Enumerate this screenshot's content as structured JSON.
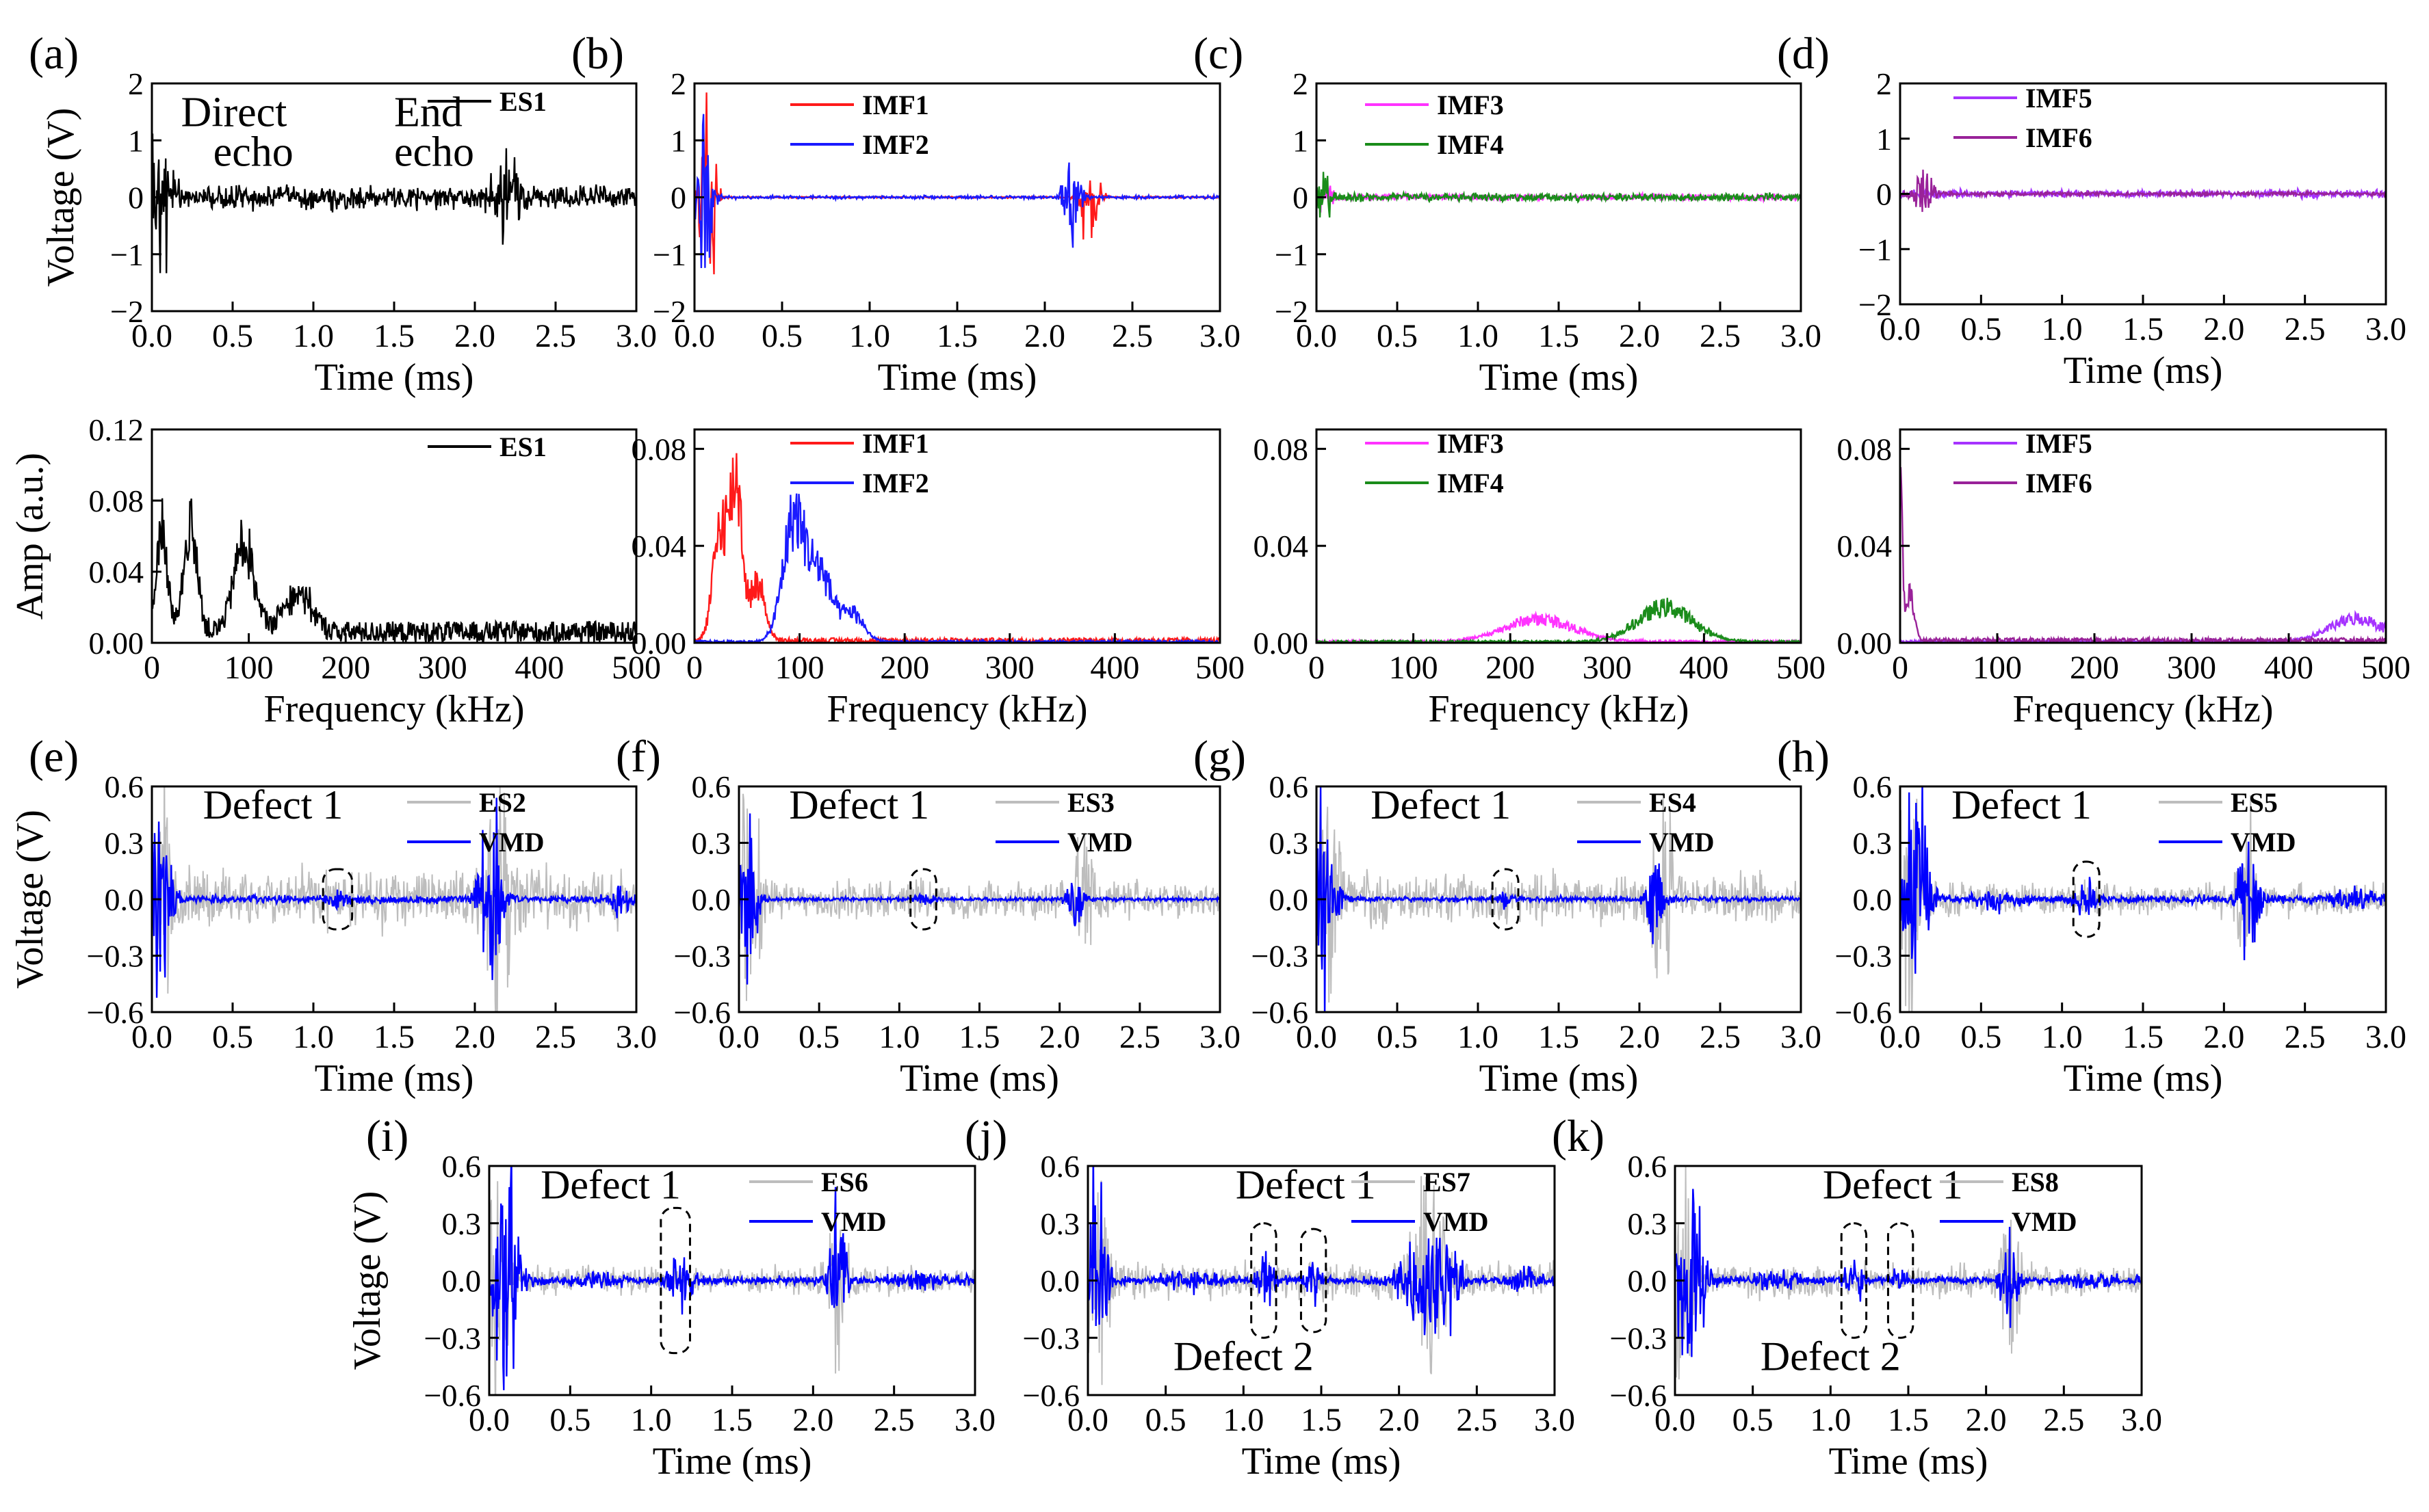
{
  "colors": {
    "ES": "#000000",
    "IMF1": "#ff1a1a",
    "IMF2": "#1a1aff",
    "IMF3": "#ff33ff",
    "IMF4": "#1a8c1a",
    "IMF5": "#a633ff",
    "IMF6": "#992299",
    "ESgray": "#bdbdbd",
    "VMD": "#0000ff"
  },
  "chart_data": [
    {
      "panel": "(a)",
      "type": "line",
      "xlabel": "Time (ms)",
      "ylabel": "Voltage (V)",
      "xlim": [
        0,
        3.0
      ],
      "ylim": [
        -2,
        2
      ],
      "xticks": [
        "0.0",
        "0.5",
        "1.0",
        "1.5",
        "2.0",
        "2.5",
        "3.0"
      ],
      "yticks": [
        "-2",
        "-1",
        "0",
        "1",
        "2"
      ],
      "series": [
        {
          "name": "ES1",
          "color": "#000000",
          "bursts": [
            [
              0.05,
              2.6,
              0.07
            ],
            [
              2.2,
              1.0,
              0.08
            ]
          ],
          "noise": 0.28
        }
      ],
      "annotations": [
        {
          "text": "Direct",
          "x": 0.18,
          "y": 1.25
        },
        {
          "text": "echo",
          "x": 0.38,
          "y": 0.55
        },
        {
          "text": "End",
          "x": 1.5,
          "y": 1.25
        },
        {
          "text": "echo",
          "x": 1.5,
          "y": 0.55
        }
      ]
    },
    {
      "panel": "(b)",
      "type": "line",
      "xlabel": "Time (ms)",
      "ylabel": "",
      "xlim": [
        0,
        3.0
      ],
      "ylim": [
        -2,
        2
      ],
      "xticks": [
        "0.0",
        "0.5",
        "1.0",
        "1.5",
        "2.0",
        "2.5",
        "3.0"
      ],
      "yticks": [
        "-2",
        "-1",
        "0",
        "1",
        "2"
      ],
      "series": [
        {
          "name": "IMF1",
          "color": "#ff1a1a",
          "bursts": [
            [
              0.08,
              2.3,
              0.05
            ],
            [
              2.25,
              1.1,
              0.06
            ]
          ],
          "noise": 0.02
        },
        {
          "name": "IMF2",
          "color": "#1a1aff",
          "bursts": [
            [
              0.05,
              2.5,
              0.05
            ],
            [
              2.15,
              1.1,
              0.05
            ]
          ],
          "noise": 0.04
        }
      ]
    },
    {
      "panel": "(c)",
      "type": "line",
      "xlabel": "Time (ms)",
      "ylabel": "",
      "xlim": [
        0,
        3.0
      ],
      "ylim": [
        -2,
        2
      ],
      "xticks": [
        "0.0",
        "0.5",
        "1.0",
        "1.5",
        "2.0",
        "2.5",
        "3.0"
      ],
      "yticks": [
        "-2",
        "-1",
        "0",
        "1",
        "2"
      ],
      "series": [
        {
          "name": "IMF3",
          "color": "#ff33ff",
          "bursts": [
            [
              0.05,
              0.45,
              0.05
            ]
          ],
          "noise": 0.08
        },
        {
          "name": "IMF4",
          "color": "#1a8c1a",
          "bursts": [
            [
              0.05,
              0.6,
              0.05
            ]
          ],
          "noise": 0.1
        }
      ]
    },
    {
      "panel": "(d)",
      "type": "line",
      "xlabel": "Time (ms)",
      "ylabel": "",
      "xlim": [
        0,
        3.0
      ],
      "ylim": [
        -2,
        2
      ],
      "xticks": [
        "0.0",
        "0.5",
        "1.0",
        "1.5",
        "2.0",
        "2.5",
        "3.0"
      ],
      "yticks": [
        "-2",
        "-1",
        "0",
        "1",
        "2"
      ],
      "series": [
        {
          "name": "IMF5",
          "color": "#a633ff",
          "bursts": [],
          "noise": 0.1
        },
        {
          "name": "IMF6",
          "color": "#992299",
          "bursts": [
            [
              0.15,
              0.8,
              0.06
            ]
          ],
          "noise": 0.05
        }
      ]
    },
    {
      "panel": "",
      "type": "line",
      "xlabel": "Frequency (kHz)",
      "ylabel": "Amp (a.u.)",
      "xlim": [
        0,
        500
      ],
      "ylim": [
        0,
        0.12
      ],
      "xticks": [
        "0",
        "100",
        "200",
        "300",
        "400",
        "500"
      ],
      "yticks": [
        "0.00",
        "0.04",
        "0.08",
        "0.12"
      ],
      "series": [
        {
          "name": "ES1",
          "color": "#000000",
          "peaks": [
            [
              10,
              0.075,
              8
            ],
            [
              40,
              0.075,
              10
            ],
            [
              95,
              0.065,
              15
            ],
            [
              150,
              0.03,
              20
            ]
          ],
          "floor": 0.012
        }
      ]
    },
    {
      "panel": "",
      "type": "line",
      "xlabel": "Frequency (kHz)",
      "ylabel": "",
      "xlim": [
        0,
        500
      ],
      "ylim": [
        0,
        0.088
      ],
      "xticks": [
        "0",
        "100",
        "200",
        "300",
        "400",
        "500"
      ],
      "yticks": [
        "0.00",
        "0.04",
        "0.08"
      ],
      "series": [
        {
          "name": "IMF1",
          "color": "#ff1a1a",
          "peaks": [
            [
              25,
              0.06,
              10
            ],
            [
              40,
              0.08,
              8
            ],
            [
              60,
              0.03,
              10
            ]
          ],
          "floor": 0.002
        },
        {
          "name": "IMF2",
          "color": "#1a1aff",
          "peaks": [
            [
              95,
              0.065,
              15
            ],
            [
              120,
              0.035,
              15
            ],
            [
              150,
              0.015,
              15
            ]
          ],
          "floor": 0.001
        }
      ]
    },
    {
      "panel": "",
      "type": "line",
      "xlabel": "Frequency (kHz)",
      "ylabel": "",
      "xlim": [
        0,
        500
      ],
      "ylim": [
        0,
        0.088
      ],
      "xticks": [
        "0",
        "100",
        "200",
        "300",
        "400",
        "500"
      ],
      "yticks": [
        "0.00",
        "0.04",
        "0.08"
      ],
      "series": [
        {
          "name": "IMF3",
          "color": "#ff33ff",
          "peaks": [
            [
              230,
              0.012,
              50
            ]
          ],
          "floor": 0.001
        },
        {
          "name": "IMF4",
          "color": "#1a8c1a",
          "peaks": [
            [
              360,
              0.018,
              40
            ]
          ],
          "floor": 0.001
        }
      ]
    },
    {
      "panel": "",
      "type": "line",
      "xlabel": "Frequency (kHz)",
      "ylabel": "",
      "xlim": [
        0,
        500
      ],
      "ylim": [
        0,
        0.088
      ],
      "xticks": [
        "0",
        "100",
        "200",
        "300",
        "400",
        "500"
      ],
      "yticks": [
        "0.00",
        "0.04",
        "0.08"
      ],
      "series": [
        {
          "name": "IMF5",
          "color": "#a633ff",
          "peaks": [
            [
              470,
              0.012,
              40
            ]
          ],
          "floor": 0.001
        },
        {
          "name": "IMF6",
          "color": "#992299",
          "peaks": [
            [
              0,
              0.09,
              3
            ],
            [
              10,
              0.025,
              6
            ]
          ],
          "floor": 0.002
        }
      ]
    },
    {
      "panel": "(e)",
      "type": "line",
      "xlabel": "Time (ms)",
      "ylabel": "Voltage (V)",
      "xlim": [
        0,
        3.0
      ],
      "ylim": [
        -0.6,
        0.6
      ],
      "xticks": [
        "0.0",
        "0.5",
        "1.0",
        "1.5",
        "2.0",
        "2.5",
        "3.0"
      ],
      "yticks": [
        "-0.6",
        "-0.3",
        "0.0",
        "0.3",
        "0.6"
      ],
      "series": [
        {
          "name": "ES2",
          "color": "#bdbdbd",
          "bursts": [
            [
              0.05,
              0.9,
              0.08
            ],
            [
              2.15,
              0.8,
              0.08
            ]
          ],
          "noise": 0.22
        },
        {
          "name": "VMD",
          "color": "#0000ff",
          "bursts": [
            [
              0.05,
              0.9,
              0.07
            ],
            [
              1.15,
              0.06,
              0.05
            ],
            [
              2.1,
              0.8,
              0.07
            ],
            [
              2.9,
              0.12,
              0.05
            ]
          ],
          "noise": 0.03
        }
      ],
      "defects": [
        {
          "label": "Defect 1",
          "x": 1.15,
          "halfw": 0.09,
          "halfh": 0.16
        }
      ]
    },
    {
      "panel": "(f)",
      "type": "line",
      "xlabel": "Time (ms)",
      "ylabel": "",
      "xlim": [
        0,
        3.0
      ],
      "ylim": [
        -0.6,
        0.6
      ],
      "xticks": [
        "0.0",
        "0.5",
        "1.0",
        "1.5",
        "2.0",
        "2.5",
        "3.0"
      ],
      "yticks": [
        "-0.6",
        "-0.3",
        "0.0",
        "0.3",
        "0.6"
      ],
      "series": [
        {
          "name": "ES3",
          "color": "#bdbdbd",
          "bursts": [
            [
              0.05,
              0.9,
              0.08
            ],
            [
              2.15,
              0.5,
              0.06
            ]
          ],
          "noise": 0.14
        },
        {
          "name": "VMD",
          "color": "#0000ff",
          "bursts": [
            [
              0.05,
              0.85,
              0.06
            ],
            [
              1.15,
              0.04,
              0.05
            ],
            [
              2.1,
              0.3,
              0.05
            ]
          ],
          "noise": 0.015
        }
      ],
      "defects": [
        {
          "label": "Defect 1",
          "x": 1.15,
          "halfw": 0.08,
          "halfh": 0.16
        }
      ]
    },
    {
      "panel": "(g)",
      "type": "line",
      "xlabel": "Time (ms)",
      "ylabel": "",
      "xlim": [
        0,
        3.0
      ],
      "ylim": [
        -0.6,
        0.6
      ],
      "xticks": [
        "0.0",
        "0.5",
        "1.0",
        "1.5",
        "2.0",
        "2.5",
        "3.0"
      ],
      "yticks": [
        "-0.6",
        "-0.3",
        "0.0",
        "0.3",
        "0.6"
      ],
      "series": [
        {
          "name": "ES4",
          "color": "#bdbdbd",
          "bursts": [
            [
              0.05,
              0.9,
              0.08
            ],
            [
              2.15,
              0.8,
              0.06
            ]
          ],
          "noise": 0.18
        },
        {
          "name": "VMD",
          "color": "#0000ff",
          "bursts": [
            [
              0.05,
              0.85,
              0.07
            ],
            [
              1.17,
              0.07,
              0.05
            ],
            [
              2.1,
              0.45,
              0.05
            ]
          ],
          "noise": 0.02
        }
      ],
      "defects": [
        {
          "label": "Defect 1",
          "x": 1.17,
          "halfw": 0.08,
          "halfh": 0.16
        }
      ]
    },
    {
      "panel": "(h)",
      "type": "line",
      "xlabel": "Time (ms)",
      "ylabel": "",
      "xlim": [
        0,
        3.0
      ],
      "ylim": [
        -0.6,
        0.6
      ],
      "xticks": [
        "0.0",
        "0.5",
        "1.0",
        "1.5",
        "2.0",
        "2.5",
        "3.0"
      ],
      "yticks": [
        "-0.6",
        "-0.3",
        "0.0",
        "0.3",
        "0.6"
      ],
      "series": [
        {
          "name": "ES5",
          "color": "#bdbdbd",
          "bursts": [
            [
              0.05,
              0.9,
              0.08
            ],
            [
              2.15,
              0.6,
              0.06
            ]
          ],
          "noise": 0.12
        },
        {
          "name": "VMD",
          "color": "#0000ff",
          "bursts": [
            [
              0.1,
              0.9,
              0.08
            ],
            [
              0.6,
              0.06,
              0.12
            ],
            [
              1.15,
              0.18,
              0.06
            ],
            [
              2.15,
              0.6,
              0.06
            ],
            [
              2.8,
              0.08,
              0.15
            ]
          ],
          "noise": 0.03
        }
      ],
      "defects": [
        {
          "label": "Defect 1",
          "x": 1.15,
          "halfw": 0.08,
          "halfh": 0.2
        }
      ]
    },
    {
      "panel": "(i)",
      "type": "line",
      "xlabel": "Time (ms)",
      "ylabel": "Voltage (V)",
      "xlim": [
        0,
        3.0
      ],
      "ylim": [
        -0.6,
        0.6
      ],
      "xticks": [
        "0.0",
        "0.5",
        "1.0",
        "1.5",
        "2.0",
        "2.5",
        "3.0"
      ],
      "yticks": [
        "-0.6",
        "-0.3",
        "0.0",
        "0.3",
        "0.6"
      ],
      "series": [
        {
          "name": "ES6",
          "color": "#bdbdbd",
          "bursts": [
            [
              0.05,
              0.9,
              0.08
            ],
            [
              2.15,
              0.7,
              0.06
            ]
          ],
          "noise": 0.1
        },
        {
          "name": "VMD",
          "color": "#0000ff",
          "bursts": [
            [
              0.1,
              0.9,
              0.08
            ],
            [
              0.65,
              0.04,
              0.15
            ],
            [
              1.18,
              0.32,
              0.06
            ],
            [
              2.15,
              0.7,
              0.05
            ],
            [
              2.7,
              0.04,
              0.2
            ]
          ],
          "noise": 0.03
        }
      ],
      "defects": [
        {
          "label": "Defect 1",
          "x": 1.15,
          "halfw": 0.09,
          "halfh": 0.38
        }
      ]
    },
    {
      "panel": "(j)",
      "type": "line",
      "xlabel": "Time (ms)",
      "ylabel": "",
      "xlim": [
        0,
        3.0
      ],
      "ylim": [
        -0.6,
        0.6
      ],
      "xticks": [
        "0.0",
        "0.5",
        "1.0",
        "1.5",
        "2.0",
        "2.5",
        "3.0"
      ],
      "yticks": [
        "-0.6",
        "-0.3",
        "0.0",
        "0.3",
        "0.6"
      ],
      "series": [
        {
          "name": "ES7",
          "color": "#bdbdbd",
          "bursts": [
            [
              0.05,
              0.9,
              0.08
            ],
            [
              2.2,
              0.7,
              0.12
            ]
          ],
          "noise": 0.14
        },
        {
          "name": "VMD",
          "color": "#0000ff",
          "bursts": [
            [
              0.05,
              0.9,
              0.07
            ],
            [
              0.65,
              0.08,
              0.15
            ],
            [
              1.15,
              0.22,
              0.05
            ],
            [
              1.45,
              0.15,
              0.05
            ],
            [
              2.2,
              0.6,
              0.15
            ],
            [
              2.8,
              0.08,
              0.1
            ]
          ],
          "noise": 0.03
        }
      ],
      "defects": [
        {
          "label": "Defect 1",
          "x": 1.13,
          "halfw": 0.08,
          "halfh": 0.3,
          "labelx": 1.4,
          "labely": 0.43
        },
        {
          "label": "Defect 2",
          "x": 1.45,
          "halfw": 0.08,
          "halfh": 0.27,
          "labelx": 1.0,
          "labely": -0.47
        }
      ]
    },
    {
      "panel": "(k)",
      "type": "line",
      "xlabel": "Time (ms)",
      "ylabel": "",
      "xlim": [
        0,
        3.0
      ],
      "ylim": [
        -0.6,
        0.6
      ],
      "xticks": [
        "0.0",
        "0.5",
        "1.0",
        "1.5",
        "2.0",
        "2.5",
        "3.0"
      ],
      "yticks": [
        "-0.6",
        "-0.3",
        "0.0",
        "0.3",
        "0.6"
      ],
      "series": [
        {
          "name": "ES8",
          "color": "#bdbdbd",
          "bursts": [
            [
              0.05,
              0.9,
              0.08
            ],
            [
              2.15,
              0.5,
              0.06
            ]
          ],
          "noise": 0.12
        },
        {
          "name": "VMD",
          "color": "#0000ff",
          "bursts": [
            [
              0.1,
              0.9,
              0.08
            ],
            [
              0.65,
              0.05,
              0.15
            ],
            [
              1.15,
              0.18,
              0.05
            ],
            [
              1.45,
              0.1,
              0.05
            ],
            [
              2.15,
              0.5,
              0.05
            ],
            [
              2.7,
              0.05,
              0.15
            ]
          ],
          "noise": 0.03
        }
      ],
      "defects": [
        {
          "label": "Defect 1",
          "x": 1.15,
          "halfw": 0.08,
          "halfh": 0.3,
          "labelx": 1.4,
          "labely": 0.43
        },
        {
          "label": "Defect 2",
          "x": 1.45,
          "halfw": 0.08,
          "halfh": 0.3,
          "labelx": 1.0,
          "labely": -0.47
        }
      ]
    }
  ]
}
